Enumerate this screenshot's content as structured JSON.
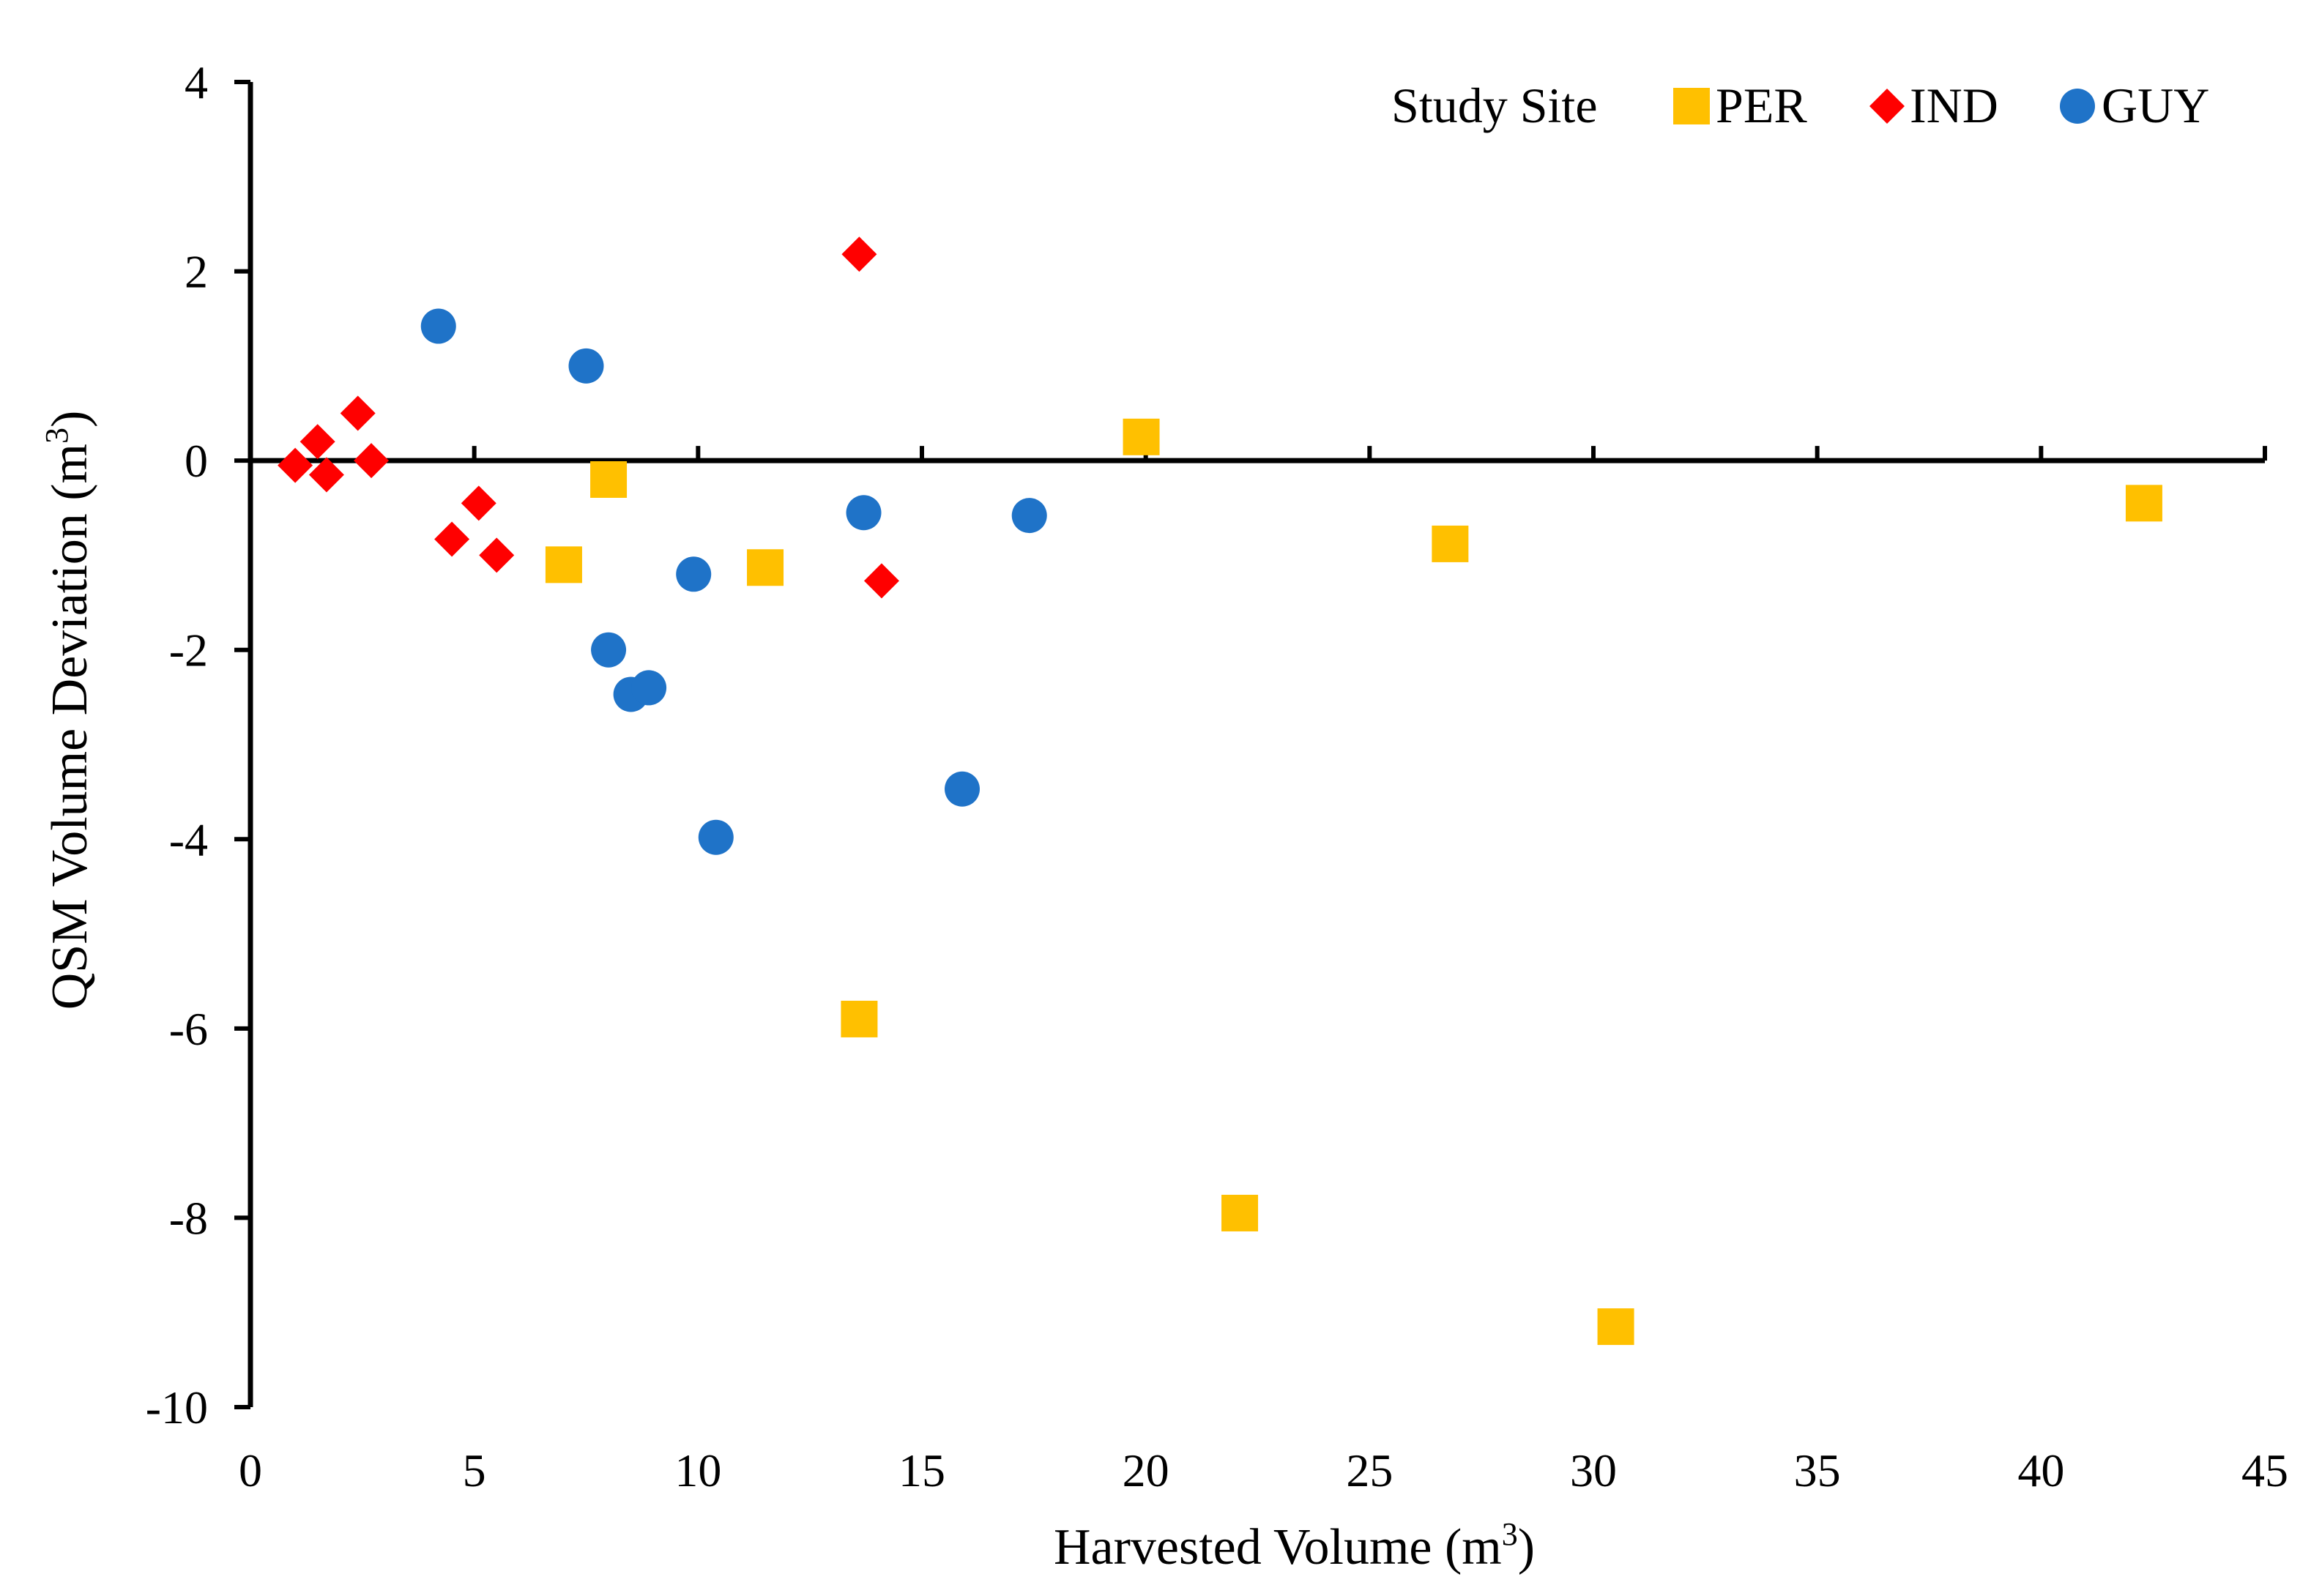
{
  "chart_data": {
    "type": "scatter",
    "title": "",
    "xlabel": "Harvested Volume (m",
    "xlabel_sup": "3",
    "xlabel_end": ")",
    "ylabel": "QSM Volume Deviation (m",
    "ylabel_sup": "3",
    "ylabel_end": ")",
    "xlim": [
      0,
      45
    ],
    "ylim": [
      -10,
      4
    ],
    "xticks": [
      0,
      5,
      10,
      15,
      20,
      25,
      30,
      35,
      40,
      45
    ],
    "yticks": [
      -10,
      -8,
      -6,
      -4,
      -2,
      0,
      2,
      4
    ],
    "grid": false,
    "legend": {
      "title": "Study Site",
      "position": "top-right"
    },
    "series": [
      {
        "name": "PER",
        "marker": "square",
        "color": "#FFC000",
        "points": [
          {
            "x": 7.0,
            "y": -1.1
          },
          {
            "x": 8.0,
            "y": -0.2
          },
          {
            "x": 11.5,
            "y": -1.13
          },
          {
            "x": 13.6,
            "y": -5.9
          },
          {
            "x": 19.9,
            "y": 0.25
          },
          {
            "x": 22.1,
            "y": -7.95
          },
          {
            "x": 26.8,
            "y": -0.88
          },
          {
            "x": 30.5,
            "y": -9.15
          },
          {
            "x": 42.3,
            "y": -0.45
          }
        ]
      },
      {
        "name": "IND",
        "marker": "diamond",
        "color": "#FF0000",
        "points": [
          {
            "x": 1.0,
            "y": -0.05
          },
          {
            "x": 1.5,
            "y": 0.2
          },
          {
            "x": 1.7,
            "y": -0.15
          },
          {
            "x": 2.4,
            "y": 0.5
          },
          {
            "x": 2.7,
            "y": 0.0
          },
          {
            "x": 4.5,
            "y": -0.83
          },
          {
            "x": 5.1,
            "y": -0.45
          },
          {
            "x": 5.5,
            "y": -1.0
          },
          {
            "x": 13.6,
            "y": 2.18
          },
          {
            "x": 14.1,
            "y": -1.27
          }
        ]
      },
      {
        "name": "GUY",
        "marker": "circle",
        "color": "#1F73C8",
        "points": [
          {
            "x": 4.2,
            "y": 1.42
          },
          {
            "x": 7.5,
            "y": 1.0
          },
          {
            "x": 8.0,
            "y": -2.0
          },
          {
            "x": 8.5,
            "y": -2.47
          },
          {
            "x": 8.9,
            "y": -2.4
          },
          {
            "x": 9.9,
            "y": -1.2
          },
          {
            "x": 10.4,
            "y": -3.98
          },
          {
            "x": 13.7,
            "y": -0.55
          },
          {
            "x": 15.9,
            "y": -3.47
          },
          {
            "x": 17.4,
            "y": -0.58
          }
        ]
      }
    ]
  }
}
